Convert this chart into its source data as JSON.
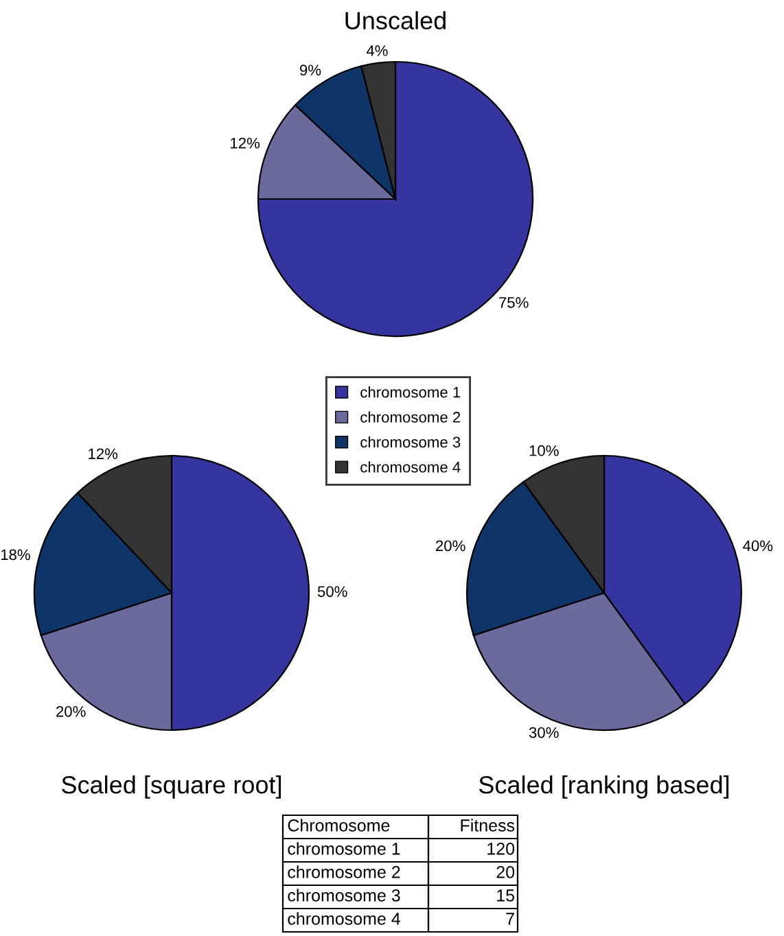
{
  "chart_data": [
    {
      "type": "pie",
      "title": "Unscaled",
      "categories": [
        "chromosome 1",
        "chromosome 2",
        "chromosome 3",
        "chromosome 4"
      ],
      "values": [
        75,
        12,
        9,
        4
      ],
      "value_labels": [
        "75%",
        "12%",
        "9%",
        "4%"
      ],
      "colors": [
        "#3535a0",
        "#6a6a9c",
        "#0e3468",
        "#333333"
      ],
      "legend": "bottom"
    },
    {
      "type": "pie",
      "title": "Scaled [square root]",
      "categories": [
        null,
        null,
        null,
        null
      ],
      "values": [
        50,
        20,
        18,
        12
      ],
      "value_labels": [
        "50%",
        "20%",
        "18%",
        "12%"
      ],
      "colors": [
        "#3535a0",
        "#6a6a9c",
        "#0e3468",
        "#333333"
      ]
    },
    {
      "type": "pie",
      "title": "Scaled [ranking based]",
      "categories": [
        null,
        null,
        null,
        null
      ],
      "values": [
        40,
        30,
        20,
        10
      ],
      "value_labels": [
        "40%",
        "30%",
        "20%",
        "10%"
      ],
      "colors": [
        "#3535a0",
        "#6a6a9c",
        "#0e3468",
        "#333333"
      ]
    },
    {
      "type": "other",
      "annotations": [
        "Chromosome",
        "Fitness",
        "chromosome 1",
        "120",
        "chromosome 2",
        "20",
        "chromosome 3",
        "15",
        "chromosome 4",
        "7"
      ]
    }
  ]
}
